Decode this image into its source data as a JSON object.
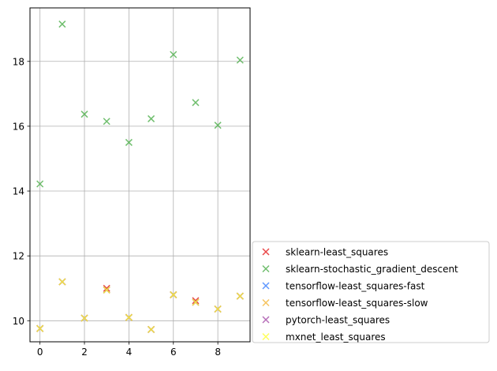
{
  "chart_data": {
    "type": "scatter",
    "title": "",
    "xlabel": "",
    "ylabel": "",
    "grid": true,
    "legend_placement": "bottom-right, outside axes",
    "xlim": [
      -0.45,
      9.45
    ],
    "ylim": [
      9.35,
      19.65
    ],
    "x_ticks": [
      0,
      2,
      4,
      6,
      8
    ],
    "y_ticks": [
      10,
      12,
      14,
      16,
      18
    ],
    "x": [
      0,
      1,
      2,
      3,
      4,
      5,
      6,
      7,
      8,
      9
    ],
    "series": [
      {
        "name": "sklearn-least_squares",
        "color": "#e41a1c",
        "values": [
          9.76,
          11.2,
          10.08,
          11.0,
          10.1,
          9.73,
          10.8,
          10.62,
          10.36,
          10.76
        ]
      },
      {
        "name": "sklearn-stochastic_gradient_descent",
        "color": "#4daf4a",
        "values": [
          14.22,
          19.15,
          16.37,
          16.15,
          15.5,
          16.23,
          18.21,
          16.73,
          16.03,
          18.04
        ]
      },
      {
        "name": "tensorflow-least_squares-fast",
        "color": "#377eff",
        "values": [
          9.76,
          11.2,
          10.08,
          10.95,
          10.1,
          9.73,
          10.8,
          10.57,
          10.36,
          10.76
        ]
      },
      {
        "name": "tensorflow-least_squares-slow",
        "color": "#f4b63a",
        "values": [
          9.76,
          11.2,
          10.08,
          10.95,
          10.1,
          9.73,
          10.8,
          10.57,
          10.36,
          10.76
        ]
      },
      {
        "name": "pytorch-least_squares",
        "color": "#a54ba8",
        "values": [
          9.76,
          11.2,
          10.08,
          10.95,
          10.1,
          9.73,
          10.8,
          10.57,
          10.36,
          10.76
        ]
      },
      {
        "name": "mxnet_least_squares",
        "color": "#ffff33",
        "values": [
          9.76,
          11.2,
          10.08,
          10.95,
          10.1,
          9.73,
          10.8,
          10.57,
          10.36,
          10.76
        ]
      }
    ],
    "marker": "x"
  }
}
